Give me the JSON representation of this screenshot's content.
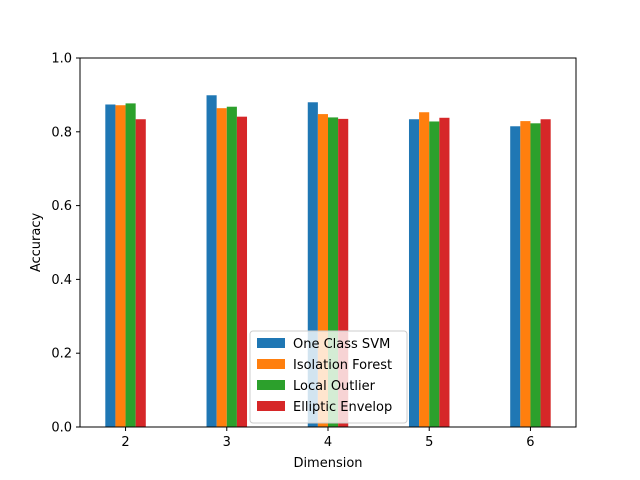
{
  "colors": {
    "one_class_svm": "#1f77b4",
    "isolation_forest": "#ff7f0e",
    "local_outlier": "#2ca02c",
    "elliptic_envelop": "#d62728"
  },
  "chart_data": {
    "type": "bar",
    "title": "",
    "xlabel": "Dimension",
    "ylabel": "Accuracy",
    "categories": [
      "2",
      "3",
      "4",
      "5",
      "6"
    ],
    "ylim": [
      0,
      1.0
    ],
    "yticks": [
      "0.0",
      "0.2",
      "0.4",
      "0.6",
      "0.8",
      "1.0"
    ],
    "grid": false,
    "legend_position": "lower-center",
    "series": [
      {
        "name": "One Class SVM",
        "color": "#1f77b4",
        "values": [
          0.874,
          0.899,
          0.88,
          0.834,
          0.815
        ]
      },
      {
        "name": "Isolation Forest",
        "color": "#ff7f0e",
        "values": [
          0.872,
          0.864,
          0.848,
          0.853,
          0.829
        ]
      },
      {
        "name": "Local Outlier",
        "color": "#2ca02c",
        "values": [
          0.877,
          0.868,
          0.839,
          0.828,
          0.823
        ]
      },
      {
        "name": "Elliptic Envelop",
        "color": "#d62728",
        "values": [
          0.834,
          0.841,
          0.835,
          0.838,
          0.834
        ]
      }
    ]
  }
}
